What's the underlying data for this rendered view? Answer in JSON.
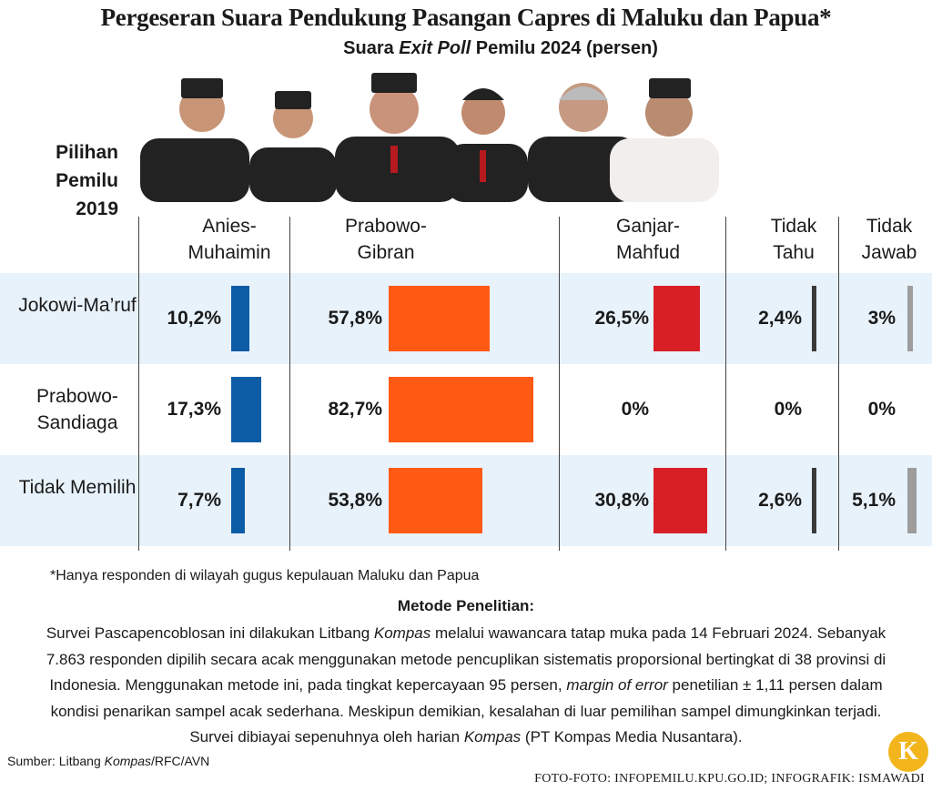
{
  "chart_data": {
    "type": "bar",
    "title": "Pergeseran Suara Pendukung Pasangan Capres di Maluku dan Papua*",
    "subtitle": [
      {
        "text": "Suara ",
        "italic": false
      },
      {
        "text": "Exit Poll",
        "italic": true
      },
      {
        "text": " Pemilu 2024 (persen)",
        "italic": false
      }
    ],
    "row_header": "Pilihan Pemilu 2019",
    "categories": [
      "Jokowi-Ma’ruf",
      "Prabowo-Sandiaga",
      "Tidak Memilih"
    ],
    "series": [
      {
        "name": "Anies-Muhaimin",
        "color": "#0d5ca6",
        "values": [
          10.2,
          17.3,
          7.7
        ],
        "value_labels": [
          "10,2%",
          "17,3%",
          "7,7%"
        ]
      },
      {
        "name": "Prabowo-Gibran",
        "color": "#ff5a14",
        "values": [
          57.8,
          82.7,
          53.8
        ],
        "value_labels": [
          "57,8%",
          "82,7%",
          "53,8%"
        ]
      },
      {
        "name": "Ganjar-Mahfud",
        "color": "#d81f26",
        "values": [
          26.5,
          0,
          30.8
        ],
        "value_labels": [
          "26,5%",
          "0%",
          "30,8%"
        ]
      },
      {
        "name": "Tidak Tahu",
        "color": "#3a3a3a",
        "values": [
          2.4,
          0,
          2.6
        ],
        "value_labels": [
          "2,4%",
          "0%",
          "2,6%"
        ]
      },
      {
        "name": "Tidak Jawab",
        "color": "#9d9d9d",
        "values": [
          3,
          0,
          5.1
        ],
        "value_labels": [
          "3%",
          "0%",
          "5,1%"
        ]
      }
    ],
    "footnote": "*Hanya responden di wilayah gugus kepulauan Maluku dan Papua"
  },
  "method": {
    "title": "Metode Penelitian:",
    "paragraph": [
      {
        "text": "Survei Pascapencoblosan ini dilakukan Litbang ",
        "italic": false
      },
      {
        "text": "Kompas",
        "italic": true
      },
      {
        "text": " melalui wawancara tatap muka pada 14 Februari 2024. Sebanyak 7.863 responden dipilih secara acak menggunakan metode pencuplikan sistematis proporsional bertingkat di 38 provinsi di Indonesia. Menggunakan metode ini, pada tingkat kepercayaan 95 persen, ",
        "italic": false
      },
      {
        "text": "margin of error",
        "italic": true
      },
      {
        "text": " penetilian ± 1,11 persen dalam kondisi penarikan sampel acak sederhana. Meskipun demikian, kesalahan di luar pemilihan sampel dimungkinkan terjadi. Survei dibiayai sepenuhnya oleh harian ",
        "italic": false
      },
      {
        "text": "Kompas",
        "italic": true
      },
      {
        "text": " (PT Kompas Media Nusantara).",
        "italic": false
      }
    ]
  },
  "source": [
    {
      "text": "Sumber: Litbang ",
      "italic": false
    },
    {
      "text": "Kompas",
      "italic": true
    },
    {
      "text": "/RFC/AVN",
      "italic": false
    }
  ],
  "credits": "FOTO-FOTO: INFOPEMILU.KPU.GO.ID; INFOGRAFIK: ISMAWADI",
  "logo": "K"
}
